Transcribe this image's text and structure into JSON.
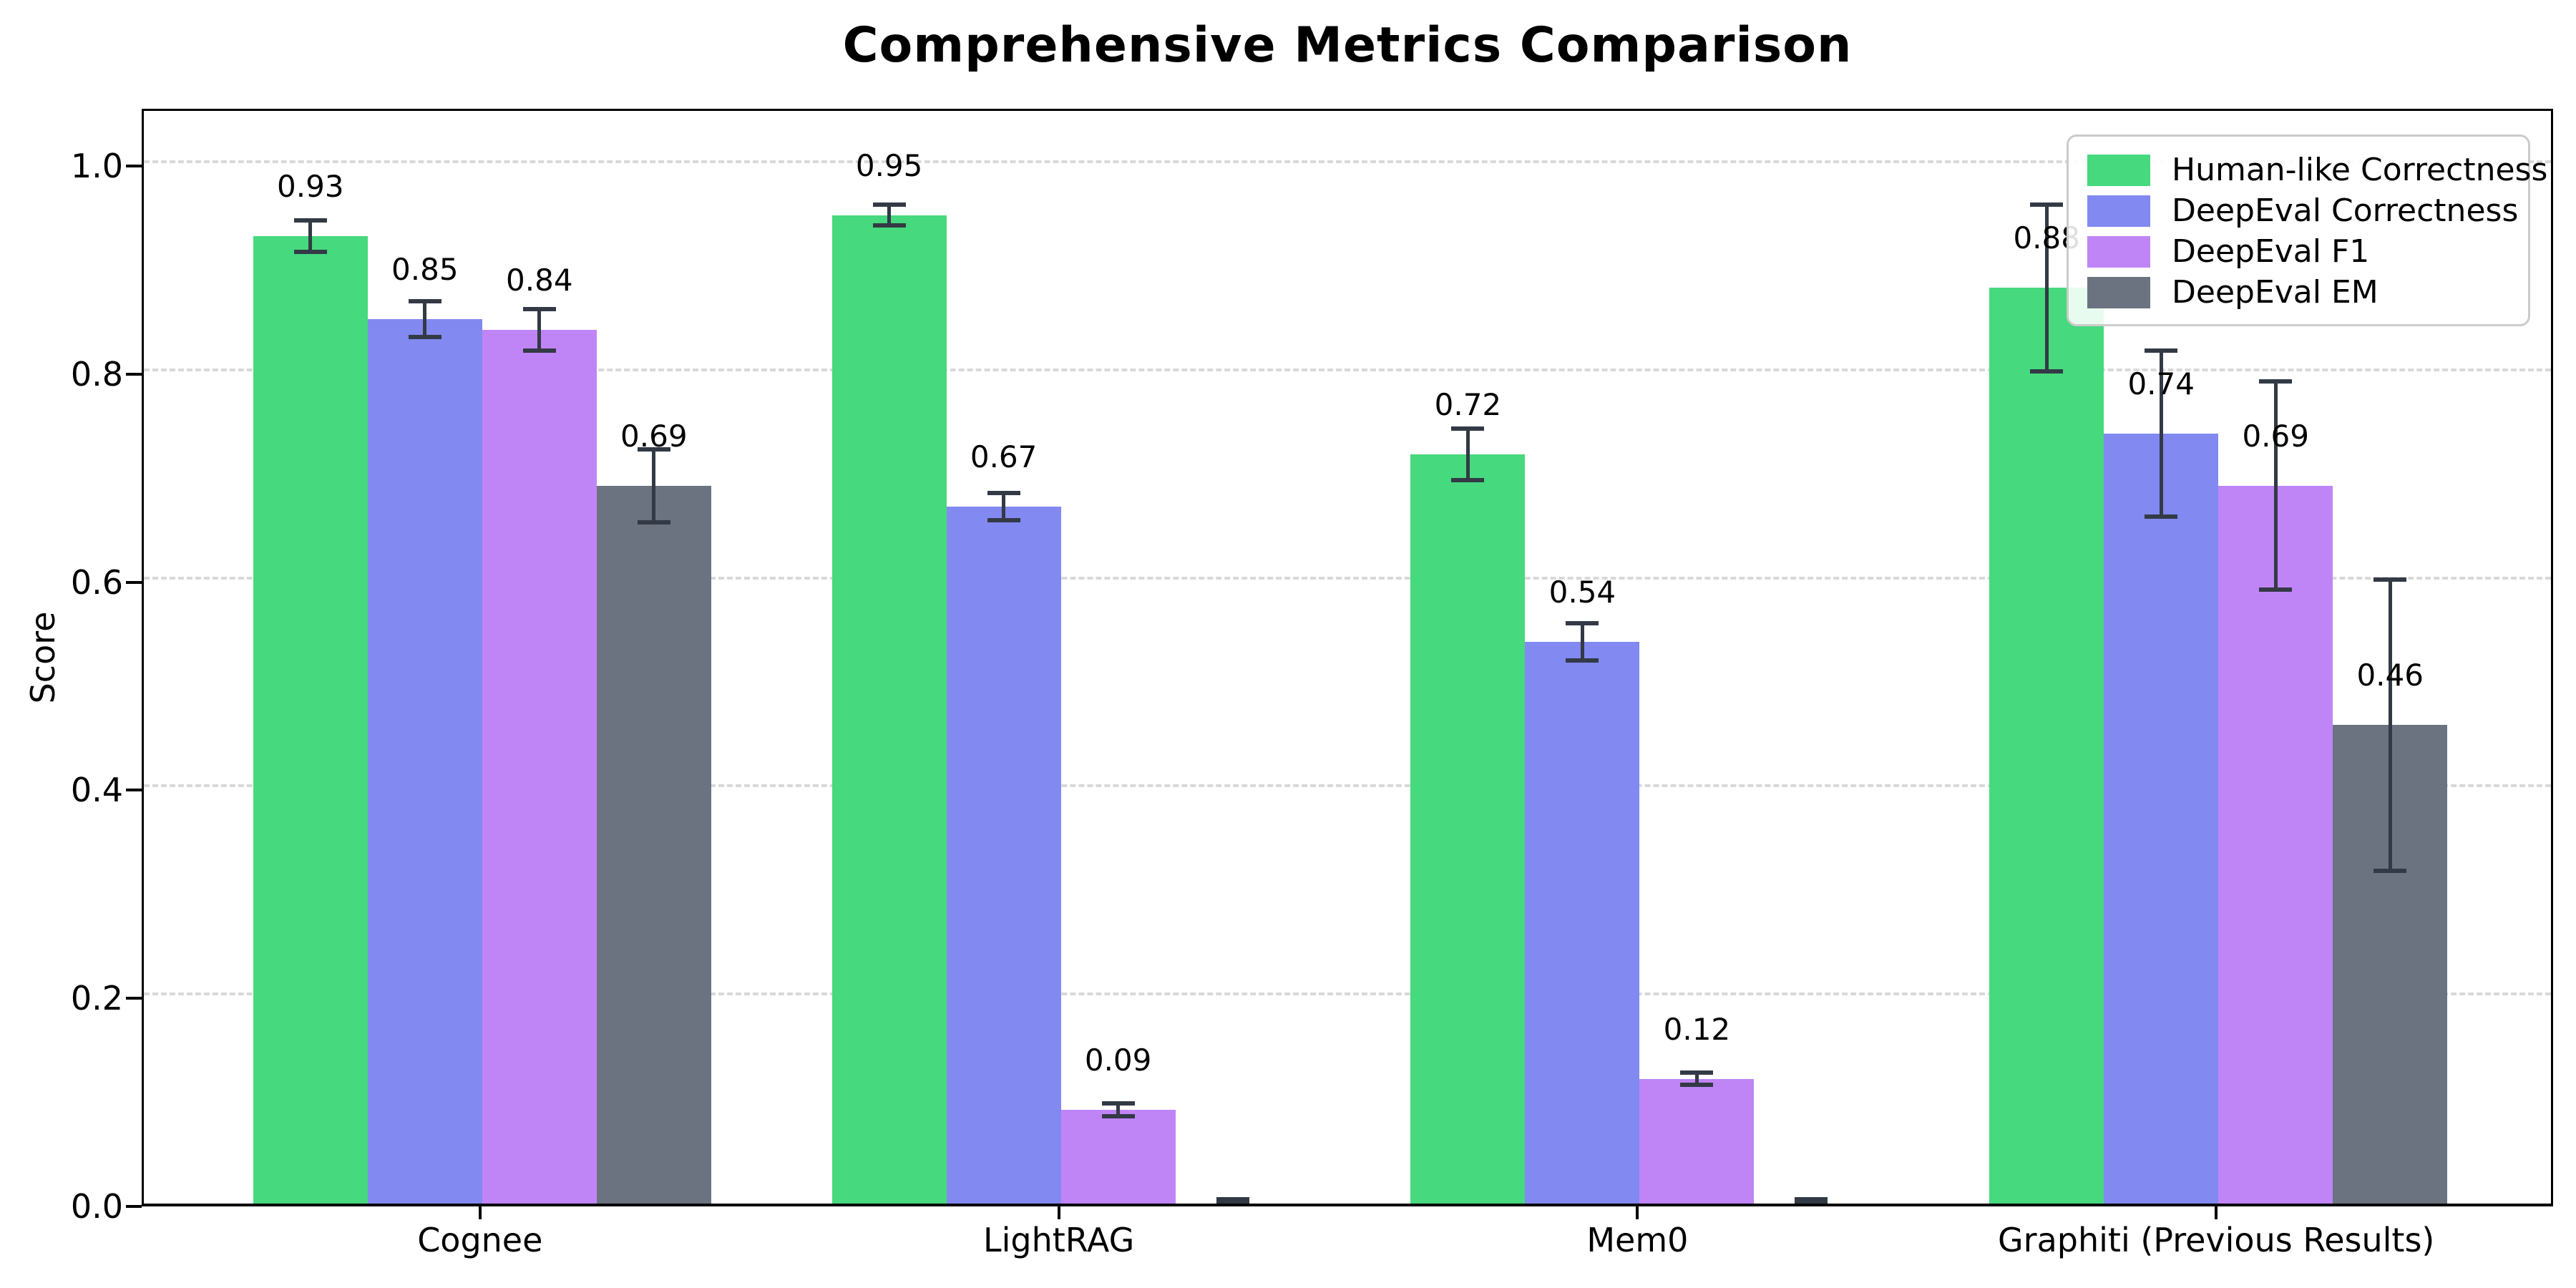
{
  "page": {
    "background": "#ffffff",
    "text_color": "#000000"
  },
  "chart_data": {
    "type": "bar",
    "title": "Comprehensive Metrics Comparison",
    "ylabel": "Score",
    "xlabel": "",
    "categories": [
      "Cognee",
      "LightRAG",
      "Mem0",
      "Graphiti (Previous Results)"
    ],
    "series": [
      {
        "name": "Human-like Correctness",
        "color": "#46d97e",
        "values": [
          0.93,
          0.95,
          0.72,
          0.88
        ],
        "errors": [
          0.015,
          0.01,
          0.025,
          0.08
        ],
        "labels": [
          "0.93",
          "0.95",
          "0.72",
          "0.88"
        ]
      },
      {
        "name": "DeepEval Correctness",
        "color": "#8289f0",
        "values": [
          0.85,
          0.67,
          0.54,
          0.74
        ],
        "errors": [
          0.017,
          0.013,
          0.018,
          0.08
        ],
        "labels": [
          "0.85",
          "0.67",
          "0.54",
          "0.74"
        ]
      },
      {
        "name": "DeepEval F1",
        "color": "#bf85f7",
        "values": [
          0.84,
          0.09,
          0.12,
          0.69
        ],
        "errors": [
          0.02,
          0.006,
          0.006,
          0.1
        ],
        "labels": [
          "0.84",
          "0.09",
          "0.12",
          "0.69"
        ]
      },
      {
        "name": "DeepEval EM",
        "color": "#6b7280",
        "values": [
          0.69,
          0.0,
          0.0,
          0.46
        ],
        "errors": [
          0.035,
          0.004,
          0.004,
          0.14
        ],
        "labels": [
          "0.69",
          "",
          "",
          "0.46"
        ]
      }
    ],
    "ylim": [
      0,
      1.055
    ],
    "yticks": [
      0.0,
      0.2,
      0.4,
      0.6,
      0.8,
      1.0
    ],
    "ytick_labels": [
      "0.0",
      "0.2",
      "0.4",
      "0.6",
      "0.8",
      "1.0"
    ],
    "grid": "horizontal dashed",
    "legend_position": "upper right",
    "error_bar_color": "#333a45",
    "axis_color": "#000000"
  }
}
